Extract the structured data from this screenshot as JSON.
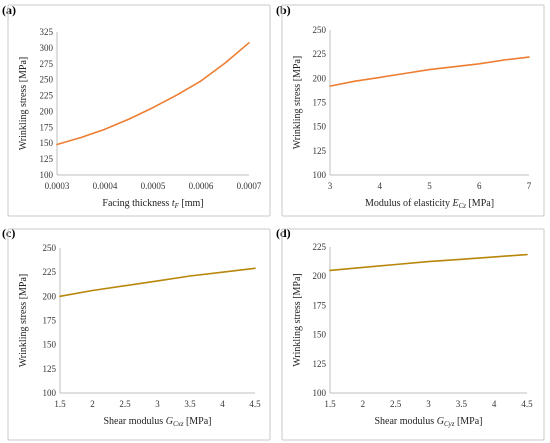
{
  "panels": [
    {
      "letter": "(a)"
    },
    {
      "letter": "(b)"
    },
    {
      "letter": "(c)"
    },
    {
      "letter": "(d)"
    }
  ],
  "chart_data": [
    {
      "type": "line",
      "panel": "(a)",
      "xlabel": "Facing thickness",
      "xlabel_symbol": "t",
      "xlabel_sub": "F",
      "xlabel_unit": "[mm]",
      "ylabel": "Wrinkling stress [MPa]",
      "xlim": [
        0.0003,
        0.0007
      ],
      "ylim": [
        100,
        325
      ],
      "xticks": [
        "0.0003",
        "0.0004",
        "0.0005",
        "0.0006",
        "0.0007"
      ],
      "yticks": [
        "100",
        "125",
        "150",
        "175",
        "200",
        "225",
        "250",
        "275",
        "300",
        "325"
      ],
      "grid": false,
      "color": "#ED7D31",
      "series": [
        {
          "x": [
            0.0003,
            0.00035,
            0.0004,
            0.00045,
            0.0005,
            0.00055,
            0.0006,
            0.00065,
            0.0007
          ],
          "y": [
            148,
            159,
            172,
            188,
            206,
            226,
            248,
            276,
            308
          ]
        }
      ]
    },
    {
      "type": "line",
      "panel": "(b)",
      "xlabel": "Modulus of elasticity",
      "xlabel_symbol": "E",
      "xlabel_sub": "Cz",
      "xlabel_unit": "[MPa]",
      "ylabel": "Wrinkling stress [MPa]",
      "xlim": [
        3,
        7
      ],
      "ylim": [
        100,
        250
      ],
      "xticks": [
        "3",
        "4",
        "5",
        "6",
        "7"
      ],
      "yticks": [
        "100",
        "125",
        "150",
        "175",
        "200",
        "225",
        "250"
      ],
      "grid": false,
      "color": "#ED7D31",
      "series": [
        {
          "x": [
            3,
            3.5,
            4,
            4.5,
            5,
            5.5,
            6,
            6.5,
            7
          ],
          "y": [
            192,
            197,
            201,
            205,
            209,
            212,
            215,
            219,
            222
          ]
        }
      ]
    },
    {
      "type": "line",
      "panel": "(c)",
      "xlabel": "Shear modulus",
      "xlabel_symbol": "G",
      "xlabel_sub": "Cxz",
      "xlabel_unit": "[MPa]",
      "ylabel": "Wrinkling stress [MPa]",
      "xlim": [
        1.5,
        4.5
      ],
      "ylim": [
        100,
        250
      ],
      "xticks": [
        "1.5",
        "2",
        "2.5",
        "3",
        "3.5",
        "4",
        "4.5"
      ],
      "yticks": [
        "100",
        "125",
        "150",
        "175",
        "200",
        "225",
        "250"
      ],
      "grid": false,
      "color": "#B8860B",
      "series": [
        {
          "x": [
            1.5,
            2,
            2.5,
            3,
            3.5,
            4,
            4.5
          ],
          "y": [
            200,
            206,
            211,
            216,
            221,
            225,
            229
          ]
        }
      ]
    },
    {
      "type": "line",
      "panel": "(d)",
      "xlabel": "Shear modulus",
      "xlabel_symbol": "G",
      "xlabel_sub": "Cyz",
      "xlabel_unit": "[MPa]",
      "ylabel": "Wrinkling stress [MPa]",
      "xlim": [
        1.5,
        4.5
      ],
      "ylim": [
        100,
        225
      ],
      "xticks": [
        "1.5",
        "2",
        "2.5",
        "3",
        "3.5",
        "4",
        "4.5"
      ],
      "yticks": [
        "100",
        "125",
        "150",
        "175",
        "200",
        "225"
      ],
      "grid": false,
      "color": "#B8860B",
      "series": [
        {
          "x": [
            1.5,
            2,
            2.5,
            3,
            3.5,
            4,
            4.5
          ],
          "y": [
            205,
            207.5,
            210,
            212.5,
            214.5,
            216.5,
            218.5
          ]
        }
      ]
    }
  ]
}
